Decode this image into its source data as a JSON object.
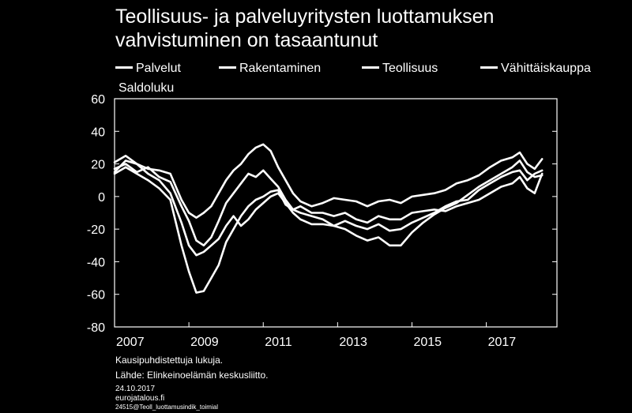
{
  "title_line1": "Teollisuus- ja palveluyritysten luottamuksen",
  "title_line2": "vahvistuminen on tasaantunut",
  "unit_label": "Saldoluku",
  "notes": {
    "line1": "Kausipuhdistettuja lukuja.",
    "line2": "Lähde: Elinkeinoelämän keskusliitto."
  },
  "footer": {
    "date": "24.10.2017",
    "site": "eurojatalous.fi",
    "code": "24515@Teoll_luottamusindik_toimial"
  },
  "chart_data": {
    "type": "line",
    "title": "Teollisuus- ja palveluyritysten luottamuksen vahvistuminen on tasaantunut",
    "ylabel": "Saldoluku",
    "ylim": [
      -80,
      60
    ],
    "xlim": [
      2007,
      2018.9
    ],
    "yticks": [
      60,
      40,
      20,
      0,
      -20,
      -40,
      -60,
      -80
    ],
    "xticks": [
      {
        "value": 2007,
        "label": "2007"
      },
      {
        "value": 2009,
        "label": "2009"
      },
      {
        "value": 2011,
        "label": "2011"
      },
      {
        "value": 2013,
        "label": "2013"
      },
      {
        "value": 2015,
        "label": "2015"
      },
      {
        "value": 2017,
        "label": "2017"
      }
    ],
    "legend_position": "top",
    "line_color": "#ffffff",
    "series": [
      {
        "name": "Palvelut",
        "points": [
          [
            2007.0,
            17
          ],
          [
            2007.3,
            20
          ],
          [
            2007.6,
            15
          ],
          [
            2007.9,
            18
          ],
          [
            2008.2,
            12
          ],
          [
            2008.5,
            9
          ],
          [
            2008.8,
            -6
          ],
          [
            2009.0,
            -15
          ],
          [
            2009.2,
            -27
          ],
          [
            2009.4,
            -30
          ],
          [
            2009.6,
            -25
          ],
          [
            2009.8,
            -15
          ],
          [
            2010.0,
            -4
          ],
          [
            2010.2,
            2
          ],
          [
            2010.4,
            8
          ],
          [
            2010.6,
            14
          ],
          [
            2010.8,
            12
          ],
          [
            2011.0,
            16
          ],
          [
            2011.2,
            11
          ],
          [
            2011.4,
            6
          ],
          [
            2011.6,
            -2
          ],
          [
            2011.8,
            -8
          ],
          [
            2012.0,
            -10
          ],
          [
            2012.3,
            -12
          ],
          [
            2012.6,
            -14
          ],
          [
            2012.9,
            -18
          ],
          [
            2013.2,
            -20
          ],
          [
            2013.5,
            -24
          ],
          [
            2013.8,
            -27
          ],
          [
            2014.1,
            -25
          ],
          [
            2014.4,
            -30
          ],
          [
            2014.7,
            -30
          ],
          [
            2015.0,
            -22
          ],
          [
            2015.3,
            -16
          ],
          [
            2015.6,
            -11
          ],
          [
            2015.9,
            -7
          ],
          [
            2016.2,
            -4
          ],
          [
            2016.5,
            1
          ],
          [
            2016.8,
            6
          ],
          [
            2017.1,
            10
          ],
          [
            2017.4,
            14
          ],
          [
            2017.7,
            18
          ],
          [
            2017.9,
            22
          ],
          [
            2018.1,
            15
          ],
          [
            2018.3,
            12
          ],
          [
            2018.5,
            13
          ]
        ]
      },
      {
        "name": "Rakentaminen",
        "points": [
          [
            2007.0,
            15
          ],
          [
            2007.3,
            22
          ],
          [
            2007.6,
            20
          ],
          [
            2007.9,
            14
          ],
          [
            2008.2,
            10
          ],
          [
            2008.5,
            2
          ],
          [
            2008.8,
            -16
          ],
          [
            2009.0,
            -30
          ],
          [
            2009.2,
            -36
          ],
          [
            2009.4,
            -34
          ],
          [
            2009.6,
            -30
          ],
          [
            2009.8,
            -26
          ],
          [
            2010.0,
            -18
          ],
          [
            2010.2,
            -12
          ],
          [
            2010.4,
            -18
          ],
          [
            2010.6,
            -14
          ],
          [
            2010.8,
            -8
          ],
          [
            2011.0,
            -4
          ],
          [
            2011.2,
            0
          ],
          [
            2011.4,
            2
          ],
          [
            2011.6,
            -4
          ],
          [
            2011.8,
            -10
          ],
          [
            2012.0,
            -14
          ],
          [
            2012.3,
            -17
          ],
          [
            2012.6,
            -17
          ],
          [
            2012.9,
            -18
          ],
          [
            2013.2,
            -15
          ],
          [
            2013.5,
            -18
          ],
          [
            2013.8,
            -20
          ],
          [
            2014.1,
            -17
          ],
          [
            2014.4,
            -21
          ],
          [
            2014.7,
            -20
          ],
          [
            2015.0,
            -16
          ],
          [
            2015.3,
            -13
          ],
          [
            2015.6,
            -10
          ],
          [
            2015.9,
            -6
          ],
          [
            2016.2,
            -3
          ],
          [
            2016.5,
            -2
          ],
          [
            2016.8,
            4
          ],
          [
            2017.1,
            8
          ],
          [
            2017.4,
            12
          ],
          [
            2017.7,
            15
          ],
          [
            2017.9,
            16
          ],
          [
            2018.1,
            10
          ],
          [
            2018.3,
            14
          ],
          [
            2018.5,
            16
          ]
        ]
      },
      {
        "name": "Teollisuus",
        "points": [
          [
            2007.0,
            14
          ],
          [
            2007.3,
            18
          ],
          [
            2007.6,
            14
          ],
          [
            2007.9,
            10
          ],
          [
            2008.2,
            5
          ],
          [
            2008.5,
            -2
          ],
          [
            2008.8,
            -30
          ],
          [
            2009.0,
            -46
          ],
          [
            2009.2,
            -59
          ],
          [
            2009.4,
            -58
          ],
          [
            2009.6,
            -50
          ],
          [
            2009.8,
            -42
          ],
          [
            2010.0,
            -28
          ],
          [
            2010.2,
            -20
          ],
          [
            2010.4,
            -12
          ],
          [
            2010.6,
            -6
          ],
          [
            2010.8,
            -2
          ],
          [
            2011.0,
            0
          ],
          [
            2011.2,
            3
          ],
          [
            2011.4,
            4
          ],
          [
            2011.6,
            -5
          ],
          [
            2011.8,
            -8
          ],
          [
            2012.0,
            -6
          ],
          [
            2012.3,
            -10
          ],
          [
            2012.6,
            -10
          ],
          [
            2012.9,
            -12
          ],
          [
            2013.2,
            -10
          ],
          [
            2013.5,
            -14
          ],
          [
            2013.8,
            -16
          ],
          [
            2014.1,
            -12
          ],
          [
            2014.4,
            -14
          ],
          [
            2014.7,
            -14
          ],
          [
            2015.0,
            -10
          ],
          [
            2015.3,
            -9
          ],
          [
            2015.6,
            -8
          ],
          [
            2015.9,
            -9
          ],
          [
            2016.2,
            -6
          ],
          [
            2016.5,
            -4
          ],
          [
            2016.8,
            -2
          ],
          [
            2017.1,
            2
          ],
          [
            2017.4,
            6
          ],
          [
            2017.7,
            8
          ],
          [
            2017.9,
            12
          ],
          [
            2018.1,
            5
          ],
          [
            2018.3,
            2
          ],
          [
            2018.5,
            14
          ]
        ]
      },
      {
        "name": "Vähittäiskauppa",
        "points": [
          [
            2007.0,
            21
          ],
          [
            2007.3,
            25
          ],
          [
            2007.6,
            20
          ],
          [
            2007.9,
            17
          ],
          [
            2008.2,
            16
          ],
          [
            2008.5,
            14
          ],
          [
            2008.8,
            -2
          ],
          [
            2009.0,
            -10
          ],
          [
            2009.2,
            -13
          ],
          [
            2009.4,
            -10
          ],
          [
            2009.6,
            -6
          ],
          [
            2009.8,
            2
          ],
          [
            2010.0,
            10
          ],
          [
            2010.2,
            16
          ],
          [
            2010.4,
            20
          ],
          [
            2010.6,
            26
          ],
          [
            2010.8,
            30
          ],
          [
            2011.0,
            32
          ],
          [
            2011.2,
            28
          ],
          [
            2011.4,
            18
          ],
          [
            2011.6,
            10
          ],
          [
            2011.8,
            2
          ],
          [
            2012.0,
            -3
          ],
          [
            2012.3,
            -6
          ],
          [
            2012.6,
            -4
          ],
          [
            2012.9,
            -1
          ],
          [
            2013.2,
            -2
          ],
          [
            2013.5,
            -3
          ],
          [
            2013.8,
            -6
          ],
          [
            2014.1,
            -3
          ],
          [
            2014.4,
            -2
          ],
          [
            2014.7,
            -4
          ],
          [
            2015.0,
            0
          ],
          [
            2015.3,
            1
          ],
          [
            2015.6,
            2
          ],
          [
            2015.9,
            4
          ],
          [
            2016.2,
            8
          ],
          [
            2016.5,
            10
          ],
          [
            2016.8,
            13
          ],
          [
            2017.1,
            18
          ],
          [
            2017.4,
            22
          ],
          [
            2017.7,
            24
          ],
          [
            2017.9,
            27
          ],
          [
            2018.1,
            20
          ],
          [
            2018.3,
            17
          ],
          [
            2018.5,
            23
          ]
        ]
      }
    ]
  }
}
